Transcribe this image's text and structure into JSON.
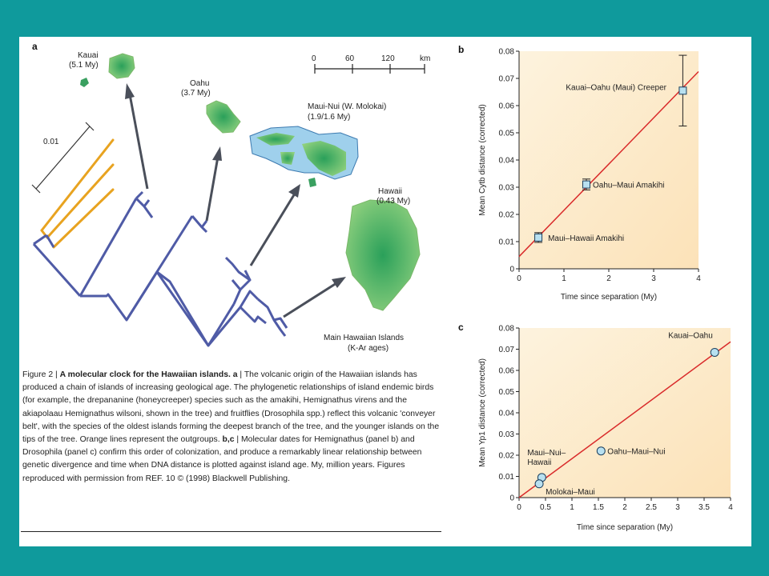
{
  "panel_a": {
    "label": "a",
    "scale_bar": {
      "ticks": [
        "0",
        "60",
        "120"
      ],
      "unit": "km"
    },
    "tree_scale": "0.01",
    "islands": {
      "kauai": [
        "Kauai",
        "(5.1 My)"
      ],
      "oahu": [
        "Oahu",
        "(3.7 My)"
      ],
      "maui": [
        "Maui-Nui (W. Molokai)",
        "(1.9/1.6 My)"
      ],
      "hawaii": [
        "Hawaii",
        "(0.43 My)"
      ]
    },
    "main_islands": [
      "Main Hawaiian Islands",
      "(K-Ar ages)"
    ]
  },
  "caption": {
    "fig": "Figure 2 | ",
    "title": "A molecular clock for the Hawaiian islands. a",
    "body": " | The volcanic origin of the Hawaiian islands has produced a chain of islands of increasing geological age. The phylogenetic relationships of island endemic birds (for example, the drepananine (honeycreeper) species such as the amakihi, Hemignathus virens and the akiapolaau Hemignathus wilsoni, shown in the tree) and fruitflies (Drosophila spp.) reflect this volcanic 'conveyer belt', with the species of the oldest islands forming the deepest branch of the tree, and the younger islands on the tips of the tree. Orange lines represent the outgroups. ",
    "bc": "b,c",
    "body2": " | Molecular dates for Hemignathus (panel b) and Drosophila (panel c) confirm this order of colonization, and produce a remarkably linear relationship between genetic divergence and time when DNA distance is plotted against island age. My, million years. Figures reproduced with permission from REF. 10 © (1998) Blackwell Publishing."
  },
  "chart_data": [
    {
      "type": "scatter",
      "panel": "b",
      "xlabel": "Time since separation (My)",
      "ylabel": "Mean Cytb distance (corrected)",
      "xlim": [
        0,
        4
      ],
      "ylim": [
        0,
        0.08
      ],
      "xticks": [
        "0",
        "1",
        "2",
        "3",
        "4"
      ],
      "yticks": [
        "0",
        "0.01",
        "0.02",
        "0.03",
        "0.04",
        "0.05",
        "0.06",
        "0.07",
        "0.08"
      ],
      "points": [
        {
          "x": 0.43,
          "y": 0.0115,
          "err": 0.0018,
          "label": "Maui–Hawaii Amakihi"
        },
        {
          "x": 1.5,
          "y": 0.031,
          "err": 0.002,
          "label": "Oahu–Maui Amakihi"
        },
        {
          "x": 3.65,
          "y": 0.0655,
          "err": 0.013,
          "label": "Kauai–Oahu (Maui) Creeper"
        }
      ],
      "fit_line": [
        [
          0,
          0.0045
        ],
        [
          4,
          0.0725
        ]
      ],
      "marker_color": "#b8e0f0",
      "line_color": "#d92b2b"
    },
    {
      "type": "scatter",
      "panel": "c",
      "xlabel": "Time since separation (My)",
      "ylabel": "Mean Yp1 distance (corrected)",
      "xlim": [
        0,
        4
      ],
      "ylim": [
        0,
        0.08
      ],
      "xticks": [
        "0",
        "0.5",
        "1",
        "1.5",
        "2",
        "2.5",
        "3",
        "3.5",
        "4"
      ],
      "yticks": [
        "0",
        "0.01",
        "0.02",
        "0.03",
        "0.04",
        "0.05",
        "0.06",
        "0.07",
        "0.08"
      ],
      "points": [
        {
          "x": 0.43,
          "y": 0.0095,
          "label": "Maui–Nui–Hawaii"
        },
        {
          "x": 0.38,
          "y": 0.0065,
          "label": "Molokai–Maui"
        },
        {
          "x": 1.55,
          "y": 0.022,
          "label": "Oahu–Maui–Nui"
        },
        {
          "x": 3.7,
          "y": 0.0685,
          "label": "Kauai–Oahu"
        }
      ],
      "fit_line": [
        [
          0,
          0.0
        ],
        [
          4,
          0.0735
        ]
      ],
      "marker_color": "#b8e0f0",
      "line_color": "#d92b2b"
    }
  ]
}
